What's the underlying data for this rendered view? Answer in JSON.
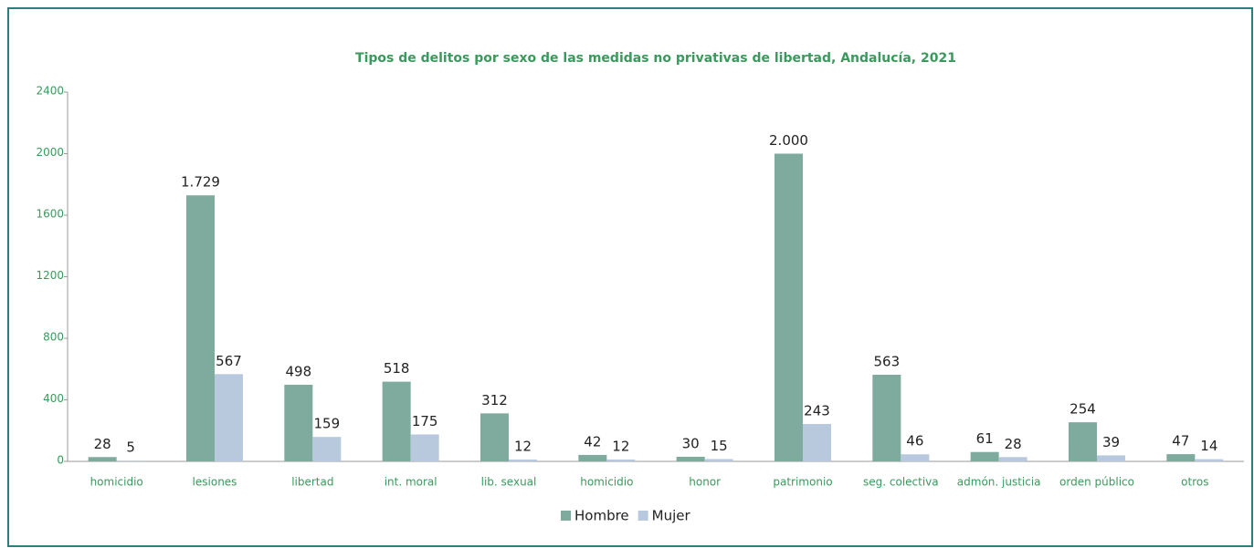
{
  "chart_data": {
    "type": "bar",
    "title": "Tipos de delitos por sexo de las medidas no privativas de libertad, Andalucía, 2021",
    "categories": [
      "homicidio",
      "lesiones",
      "libertad",
      "int. moral",
      "lib. sexual",
      "homicidio",
      "honor",
      "patrimonio",
      "seg. colectiva",
      "admón. justicia",
      "orden público",
      "otros"
    ],
    "series": [
      {
        "name": "Hombre",
        "color": "#7fab9f",
        "values": [
          28,
          1729,
          498,
          518,
          312,
          42,
          30,
          2000,
          563,
          61,
          254,
          47
        ],
        "value_labels": [
          "28",
          "1.729",
          "498",
          "518",
          "312",
          "42",
          "30",
          "2.000",
          "563",
          "61",
          "254",
          "47"
        ]
      },
      {
        "name": "Mujer",
        "color": "#b8c9dd",
        "values": [
          5,
          567,
          159,
          175,
          12,
          12,
          15,
          243,
          46,
          28,
          39,
          14
        ],
        "value_labels": [
          "5",
          "567",
          "159",
          "175",
          "12",
          "12",
          "15",
          "243",
          "46",
          "28",
          "39",
          "14"
        ]
      }
    ],
    "ylim": [
      0,
      2400
    ],
    "yticks": [
      0,
      400,
      800,
      1200,
      1600,
      2000,
      2400
    ],
    "grid": false
  }
}
